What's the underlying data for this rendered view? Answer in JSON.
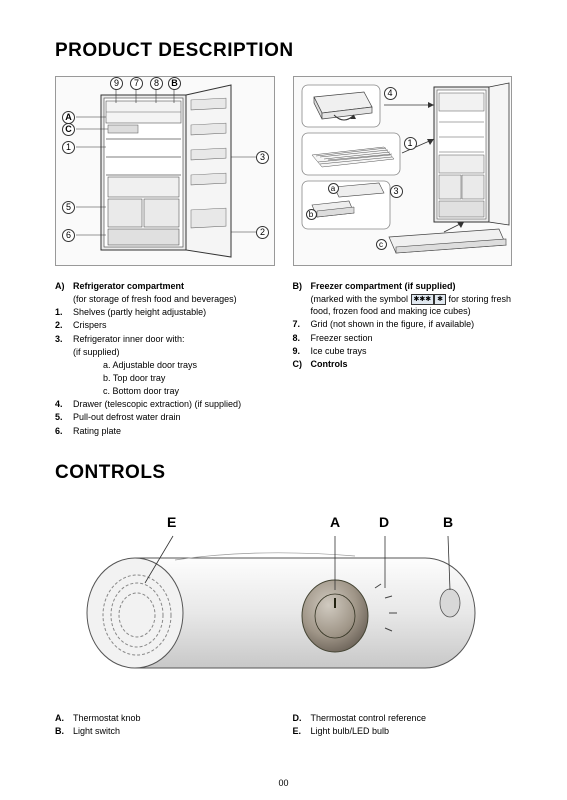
{
  "section1": {
    "title": "PRODUCT DESCRIPTION",
    "figure_left": {
      "callouts_numbers": [
        "9",
        "7",
        "8",
        "B"
      ],
      "callouts_left_numbers": [
        "A",
        "C",
        "1",
        "5",
        "6"
      ],
      "callouts_right_numbers": [
        "3",
        "2"
      ]
    },
    "figure_right": {
      "panels": [
        "4",
        "1",
        "3",
        "a",
        "b",
        "c"
      ]
    },
    "legend_left": [
      {
        "k": "A)",
        "t": "Refrigerator compartment",
        "bold": true
      },
      {
        "k": "",
        "t": "(for storage of fresh food and beverages)"
      },
      {
        "k": "1.",
        "t": "Shelves (partly height adjustable)"
      },
      {
        "k": "2.",
        "t": "Crispers"
      },
      {
        "k": "3.",
        "t": "Refrigerator inner door with:"
      },
      {
        "k": "",
        "t": "(if supplied)"
      },
      {
        "k": "",
        "t": "a. Adjustable door trays",
        "sub": true
      },
      {
        "k": "",
        "t": "b. Top door tray",
        "sub": true
      },
      {
        "k": "",
        "t": "c. Bottom door tray",
        "sub": true
      },
      {
        "k": "4.",
        "t": "Drawer (telescopic extraction) (if supplied)"
      },
      {
        "k": "5.",
        "t": "Pull-out defrost water drain"
      },
      {
        "k": "6.",
        "t": "Rating plate"
      }
    ],
    "legend_right": [
      {
        "k": "B)",
        "t": "Freezer compartment (if supplied)",
        "bold": true
      },
      {
        "k": "",
        "t": "(marked with the symbol __SYM__ for storing fresh food, frozen food and making ice cubes)",
        "symbol": true
      },
      {
        "k": "7.",
        "t": "Grid (not shown in the figure, if available)"
      },
      {
        "k": "8.",
        "t": "Freezer section"
      },
      {
        "k": "9.",
        "t": "Ice cube trays"
      },
      {
        "k": "C)",
        "t": "Controls",
        "bold": true
      }
    ]
  },
  "section2": {
    "title": "CONTROLS",
    "labels": {
      "E": "E",
      "A": "A",
      "D": "D",
      "B": "B"
    },
    "legend_left": [
      {
        "k": "A.",
        "t": "Thermostat knob"
      },
      {
        "k": "B.",
        "t": "Light switch"
      }
    ],
    "legend_right": [
      {
        "k": "D.",
        "t": "Thermostat control reference"
      },
      {
        "k": "E.",
        "t": "Light bulb/LED bulb"
      }
    ]
  },
  "page_number": "00",
  "colors": {
    "text": "#000000",
    "bg": "#ffffff",
    "fig_border": "#999999",
    "line": "#333333"
  }
}
